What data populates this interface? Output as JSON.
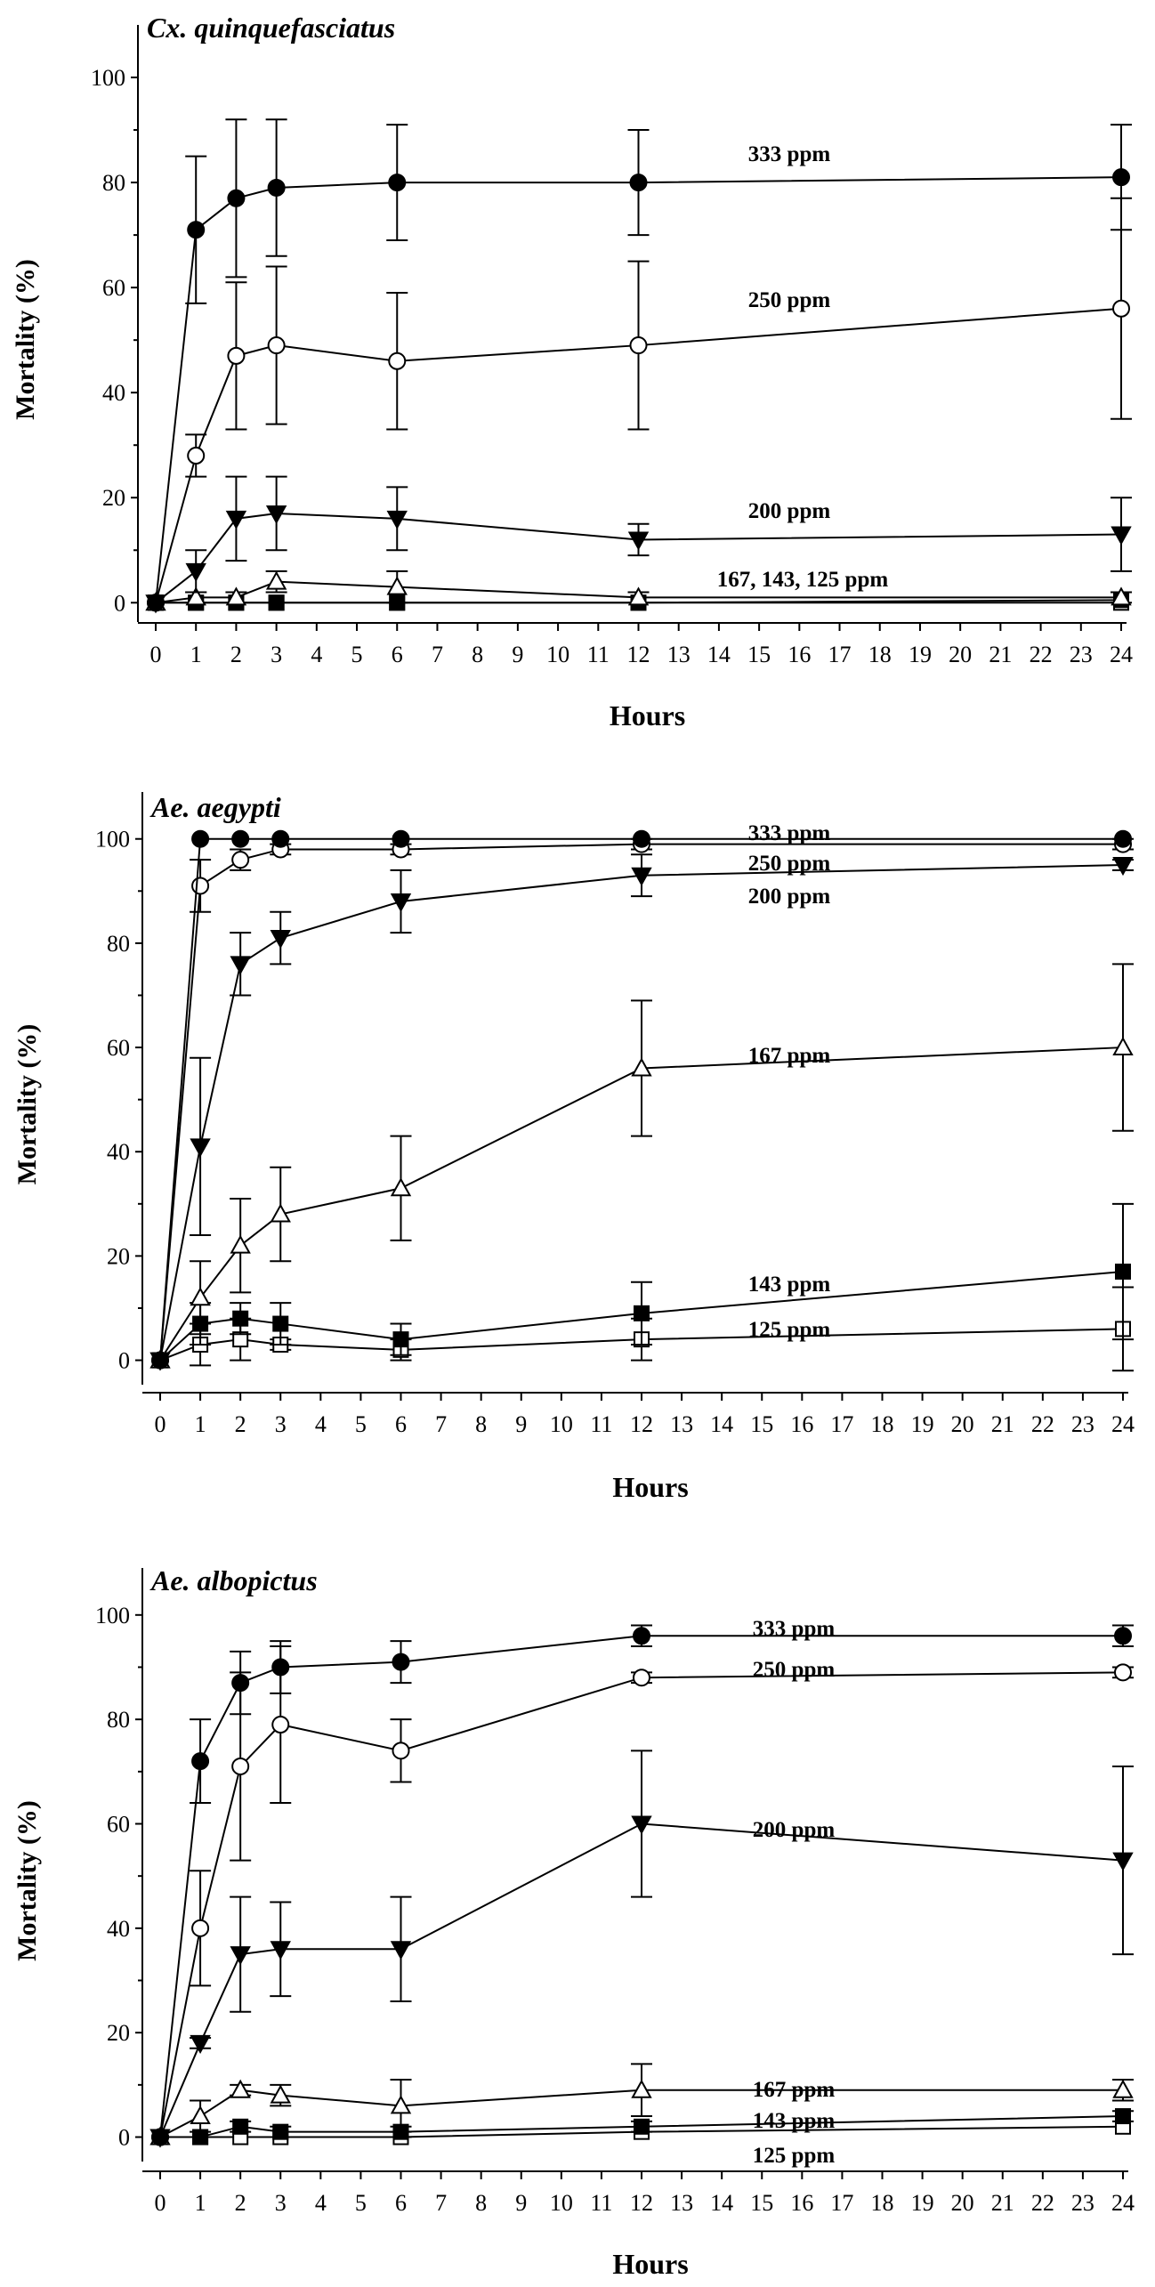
{
  "chart_data": [
    {
      "type": "line",
      "title": "Cx. quinquefasciatus",
      "xlabel": "Hours",
      "ylabel": "Mortality (%)",
      "xticks": [
        "0",
        "1",
        "2",
        "3",
        "4",
        "5",
        "6",
        "7",
        "8",
        "9",
        "10",
        "11",
        "12",
        "13",
        "14",
        "15",
        "16",
        "17",
        "18",
        "19",
        "20",
        "21",
        "22",
        "23",
        "24"
      ],
      "yticks": [
        "0",
        "20",
        "40",
        "60",
        "80",
        "100"
      ],
      "xlim": [
        0,
        24
      ],
      "ylim": [
        -3,
        110
      ],
      "x": [
        0,
        1,
        2,
        3,
        6,
        12,
        24
      ],
      "series": [
        {
          "name": "333 ppm",
          "marker": "circle-filled",
          "values": [
            0,
            71,
            77,
            79,
            80,
            80,
            81
          ],
          "errors": [
            0,
            14,
            15,
            13,
            11,
            10,
            10
          ]
        },
        {
          "name": "250 ppm",
          "marker": "circle-open",
          "values": [
            0,
            28,
            47,
            49,
            46,
            49,
            56
          ],
          "errors": [
            0,
            4,
            14,
            15,
            13,
            16,
            21
          ]
        },
        {
          "name": "200 ppm",
          "marker": "triangle-down-filled",
          "values": [
            0,
            6,
            16,
            17,
            16,
            12,
            13
          ],
          "errors": [
            0,
            4,
            8,
            7,
            6,
            3,
            7
          ]
        },
        {
          "name": "167 ppm",
          "marker": "triangle-up-open",
          "values": [
            0,
            1,
            1,
            4,
            3,
            1,
            1
          ],
          "errors": [
            0,
            1,
            1,
            2,
            3,
            1,
            1
          ]
        },
        {
          "name": "143 ppm",
          "marker": "square-filled",
          "values": [
            0,
            0,
            0,
            0,
            0,
            0,
            0.5
          ],
          "errors": [
            0,
            0,
            0,
            0,
            0,
            0,
            0
          ]
        },
        {
          "name": "125 ppm",
          "marker": "square-open",
          "values": [
            0,
            0,
            0,
            0,
            0,
            0,
            0
          ],
          "errors": [
            0,
            0,
            0,
            0,
            0,
            0,
            0
          ]
        }
      ],
      "annotations": [
        "333 ppm",
        "250 ppm",
        "200 ppm",
        "167, 143, 125  ppm"
      ]
    },
    {
      "type": "line",
      "title": "Ae. aegypti",
      "xlabel": "Hours",
      "ylabel": "Mortality (%)",
      "xticks": [
        "0",
        "1",
        "2",
        "3",
        "4",
        "5",
        "6",
        "7",
        "8",
        "9",
        "10",
        "11",
        "12",
        "13",
        "14",
        "15",
        "16",
        "17",
        "18",
        "19",
        "20",
        "21",
        "22",
        "23",
        "24"
      ],
      "yticks": [
        "0",
        "20",
        "40",
        "60",
        "80",
        "100"
      ],
      "xlim": [
        0,
        24
      ],
      "ylim": [
        -4,
        109
      ],
      "x": [
        0,
        1,
        2,
        3,
        6,
        12,
        24
      ],
      "series": [
        {
          "name": "333 ppm",
          "marker": "circle-filled",
          "values": [
            0,
            100,
            100,
            100,
            100,
            100,
            100
          ],
          "errors": [
            0,
            0,
            0,
            0,
            0,
            0,
            0
          ]
        },
        {
          "name": "250 ppm",
          "marker": "circle-open",
          "values": [
            0,
            91,
            96,
            98,
            98,
            99,
            99
          ],
          "errors": [
            0,
            5,
            2,
            1,
            1,
            1,
            1
          ]
        },
        {
          "name": "200 ppm",
          "marker": "triangle-down-filled",
          "values": [
            0,
            41,
            76,
            81,
            88,
            93,
            95
          ],
          "errors": [
            0,
            17,
            6,
            5,
            6,
            4,
            1
          ]
        },
        {
          "name": "167 ppm",
          "marker": "triangle-up-open",
          "values": [
            0,
            12,
            22,
            28,
            33,
            56,
            60
          ],
          "errors": [
            0,
            7,
            9,
            9,
            10,
            13,
            16
          ]
        },
        {
          "name": "143 ppm",
          "marker": "square-filled",
          "values": [
            0,
            7,
            8,
            7,
            4,
            9,
            17
          ],
          "errors": [
            0,
            4,
            3,
            4,
            3,
            6,
            13
          ]
        },
        {
          "name": "125 ppm",
          "marker": "square-open",
          "values": [
            0,
            3,
            4,
            3,
            2,
            4,
            6
          ],
          "errors": [
            0,
            4,
            4,
            1,
            2,
            4,
            8
          ]
        }
      ],
      "annotations": [
        "333 ppm",
        "250 ppm",
        "200 ppm",
        "167 ppm",
        "143 ppm",
        "125 ppm"
      ]
    },
    {
      "type": "line",
      "title": "Ae. albopictus",
      "xlabel": "Hours",
      "ylabel": "Mortality (%)",
      "xticks": [
        "0",
        "1",
        "2",
        "3",
        "4",
        "5",
        "6",
        "7",
        "8",
        "9",
        "10",
        "11",
        "12",
        "13",
        "14",
        "15",
        "16",
        "17",
        "18",
        "19",
        "20",
        "21",
        "22",
        "23",
        "24"
      ],
      "yticks": [
        "0",
        "20",
        "40",
        "60",
        "80",
        "100"
      ],
      "xlim": [
        0,
        24
      ],
      "ylim": [
        -4,
        109
      ],
      "x": [
        0,
        1,
        2,
        3,
        6,
        12,
        24
      ],
      "series": [
        {
          "name": "333 ppm",
          "marker": "circle-filled",
          "values": [
            0,
            72,
            87,
            90,
            91,
            96,
            96
          ],
          "errors": [
            0,
            8,
            6,
            5,
            4,
            2,
            2
          ]
        },
        {
          "name": "250 ppm",
          "marker": "circle-open",
          "values": [
            0,
            40,
            71,
            79,
            74,
            88,
            89
          ],
          "errors": [
            0,
            11,
            18,
            15,
            6,
            1,
            1
          ]
        },
        {
          "name": "200 ppm",
          "marker": "triangle-down-filled",
          "values": [
            0,
            18,
            35,
            36,
            36,
            60,
            53
          ],
          "errors": [
            0,
            1,
            11,
            9,
            10,
            14,
            18
          ]
        },
        {
          "name": "167 ppm",
          "marker": "triangle-up-open",
          "values": [
            0,
            4,
            9,
            8,
            6,
            9,
            9
          ],
          "errors": [
            0,
            3,
            1,
            2,
            5,
            5,
            2
          ]
        },
        {
          "name": "143 ppm",
          "marker": "square-filled",
          "values": [
            0,
            0,
            2,
            1,
            1,
            2,
            4
          ],
          "errors": [
            0,
            0,
            1,
            1,
            1,
            1,
            1
          ]
        },
        {
          "name": "125 ppm",
          "marker": "square-open",
          "values": [
            0,
            0,
            0,
            0,
            0,
            1,
            2
          ],
          "errors": [
            0,
            0,
            0,
            0,
            0,
            0,
            0
          ]
        }
      ],
      "annotations": [
        "333 ppm",
        "250 ppm",
        "200 ppm",
        "167 ppm",
        "143 ppm",
        "125 ppm"
      ]
    }
  ]
}
